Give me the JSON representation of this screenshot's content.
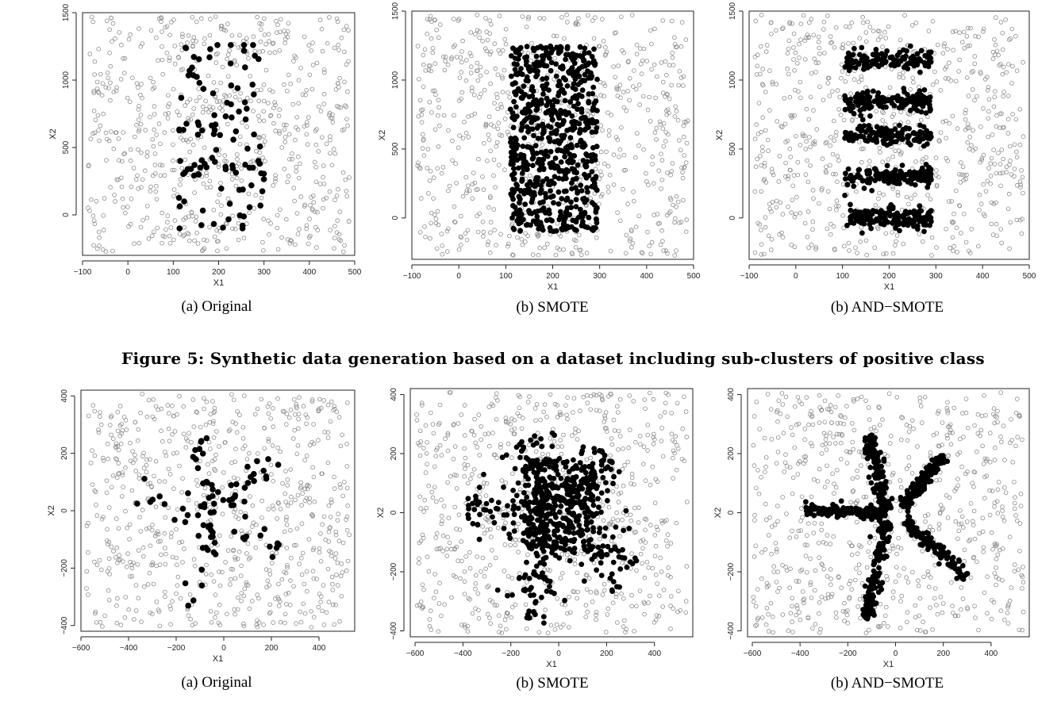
{
  "figure_caption": "Figure 5: Synthetic data generation based on a dataset including sub-clusters of positive class",
  "chart_data": [
    {
      "type": "scatter",
      "caption": "(a) Original",
      "xlabel": "X1",
      "ylabel": "X2",
      "xlim": [
        -100,
        500
      ],
      "ylim": [
        -300,
        1500
      ],
      "xticks": [
        -100,
        0,
        100,
        200,
        300,
        400,
        500
      ],
      "yticks": [
        0,
        500,
        1000,
        1500
      ],
      "pattern": "clusters-original",
      "n_majority": 700,
      "n_minority": 105,
      "seed": 11,
      "series": [
        {
          "role": "majority",
          "marker": "open-circle",
          "color": "#8a8a8a"
        },
        {
          "role": "minority",
          "marker": "filled-circle",
          "color": "#000000"
        }
      ]
    },
    {
      "type": "scatter",
      "caption": "(b) SMOTE",
      "xlabel": "X1",
      "ylabel": "X2",
      "xlim": [
        -100,
        500
      ],
      "ylim": [
        -300,
        1500
      ],
      "xticks": [
        -100,
        0,
        100,
        200,
        300,
        400,
        500
      ],
      "yticks": [
        0,
        500,
        1000,
        1500
      ],
      "pattern": "clusters-smote",
      "n_majority": 700,
      "n_minority": 700,
      "seed": 22,
      "series": [
        {
          "role": "majority",
          "marker": "open-circle",
          "color": "#8a8a8a"
        },
        {
          "role": "minority",
          "marker": "filled-circle",
          "color": "#000000"
        }
      ]
    },
    {
      "type": "scatter",
      "caption": "(b) AND−SMOTE",
      "xlabel": "X1",
      "ylabel": "X2",
      "xlim": [
        -100,
        500
      ],
      "ylim": [
        -300,
        1500
      ],
      "xticks": [
        -100,
        0,
        100,
        200,
        300,
        400,
        500
      ],
      "yticks": [
        0,
        500,
        1000,
        1500
      ],
      "pattern": "clusters-and",
      "n_majority": 700,
      "n_minority": 700,
      "seed": 33,
      "series": [
        {
          "role": "majority",
          "marker": "open-circle",
          "color": "#8a8a8a"
        },
        {
          "role": "minority",
          "marker": "filled-circle",
          "color": "#000000"
        }
      ]
    },
    {
      "type": "scatter",
      "caption": "(a) Original",
      "xlabel": "X1",
      "ylabel": "X2",
      "xlim": [
        -600,
        550
      ],
      "ylim": [
        -420,
        420
      ],
      "xticks": [
        -600,
        -400,
        -200,
        0,
        200,
        400
      ],
      "yticks": [
        -400,
        -200,
        0,
        200,
        400
      ],
      "pattern": "star-original",
      "n_majority": 700,
      "n_minority": 90,
      "seed": 44,
      "series": [
        {
          "role": "majority",
          "marker": "open-circle",
          "color": "#8a8a8a"
        },
        {
          "role": "minority",
          "marker": "filled-circle",
          "color": "#000000"
        }
      ]
    },
    {
      "type": "scatter",
      "caption": "(b) SMOTE",
      "xlabel": "X1",
      "ylabel": "X2",
      "xlim": [
        -620,
        560
      ],
      "ylim": [
        -420,
        420
      ],
      "xticks": [
        -600,
        -400,
        -200,
        0,
        200,
        400
      ],
      "yticks": [
        -400,
        -200,
        0,
        200,
        400
      ],
      "pattern": "star-smote",
      "n_majority": 700,
      "n_minority": 650,
      "seed": 55,
      "series": [
        {
          "role": "majority",
          "marker": "open-circle",
          "color": "#8a8a8a"
        },
        {
          "role": "minority",
          "marker": "filled-circle",
          "color": "#000000"
        }
      ]
    },
    {
      "type": "scatter",
      "caption": "(b) AND−SMOTE",
      "xlabel": "X1",
      "ylabel": "X2",
      "xlim": [
        -620,
        560
      ],
      "ylim": [
        -420,
        420
      ],
      "xticks": [
        -600,
        -400,
        -200,
        0,
        200,
        400
      ],
      "yticks": [
        -400,
        -200,
        0,
        200,
        400
      ],
      "pattern": "star-and",
      "n_majority": 700,
      "n_minority": 650,
      "seed": 66,
      "series": [
        {
          "role": "majority",
          "marker": "open-circle",
          "color": "#8a8a8a"
        },
        {
          "role": "minority",
          "marker": "filled-circle",
          "color": "#000000"
        }
      ]
    }
  ]
}
